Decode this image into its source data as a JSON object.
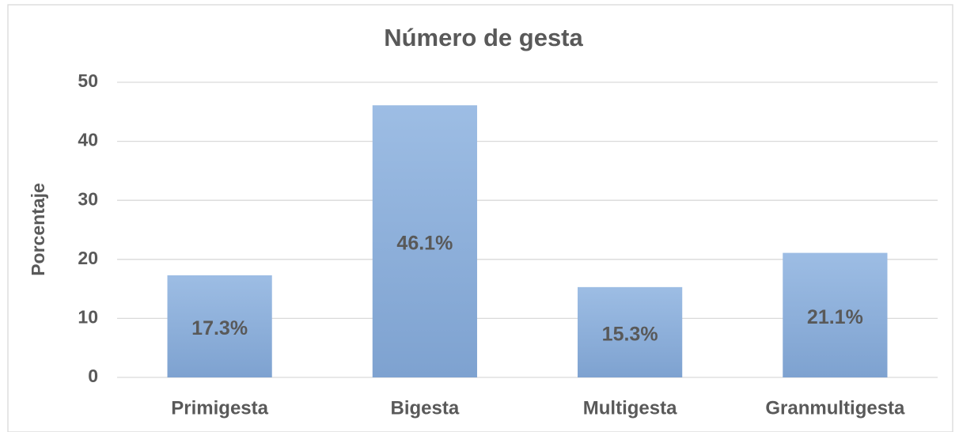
{
  "chart_data": {
    "type": "bar",
    "title": "Número de gesta",
    "y_label": "Porcentaje",
    "categories": [
      "Primigesta",
      "Bigesta",
      "Multigesta",
      "Granmultigesta"
    ],
    "values": [
      17.3,
      46.1,
      15.3,
      21.1
    ],
    "value_labels": [
      "17.3%",
      "46.1%",
      "15.3%",
      "21.1%"
    ],
    "color": "#9dbde4",
    "ylim": [
      0,
      50
    ],
    "yticks": [
      0,
      10,
      20,
      30,
      40,
      50
    ],
    "grid": true
  }
}
